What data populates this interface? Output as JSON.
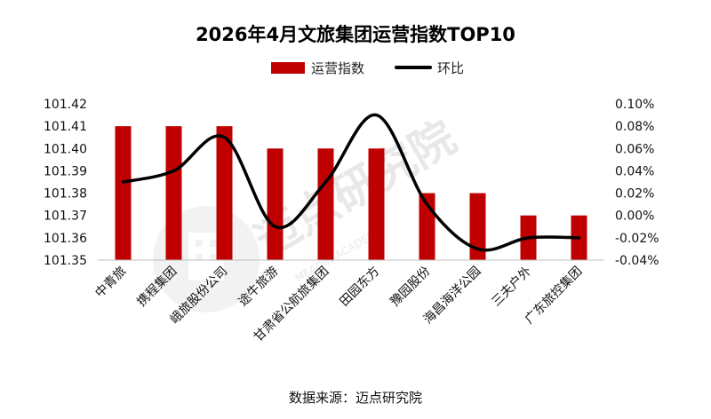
{
  "chart_data": {
    "type": "bar",
    "title": "2026年4月文旅集团运营指数TOP10",
    "categories": [
      "中青旅",
      "携程集团",
      "峨旅股份公司",
      "途牛旅游",
      "甘肃省公航旅集团",
      "田园东方",
      "豫园股份",
      "海昌海洋公园",
      "三夫户外",
      "广东旅控集团"
    ],
    "series": [
      {
        "name": "运营指数",
        "type": "bar",
        "axis": "left",
        "color": "#c00000",
        "values": [
          101.41,
          101.41,
          101.41,
          101.4,
          101.4,
          101.4,
          101.38,
          101.38,
          101.37,
          101.37
        ]
      },
      {
        "name": "环比",
        "type": "line",
        "axis": "right",
        "color": "#000000",
        "values": [
          0.03,
          0.04,
          0.07,
          -0.01,
          0.03,
          0.09,
          0.01,
          -0.03,
          -0.02,
          -0.02
        ]
      }
    ],
    "y_left": {
      "min": 101.35,
      "max": 101.42,
      "step": 0.01,
      "ticks": [
        "101.35",
        "101.36",
        "101.37",
        "101.38",
        "101.39",
        "101.40",
        "101.41",
        "101.42"
      ]
    },
    "y_right": {
      "min": -0.04,
      "max": 0.1,
      "step": 0.02,
      "ticks": [
        "-0.04%",
        "-0.02%",
        "0.00%",
        "0.02%",
        "0.04%",
        "0.06%",
        "0.08%",
        "0.10%"
      ]
    },
    "legend": {
      "placement": "top",
      "items": [
        "运营指数",
        "环比"
      ]
    },
    "grid": false
  },
  "source_note": "数据来源：迈点研究院",
  "watermark": {
    "text": "迈点研究院",
    "subtext": "MEADIN  ACADEMY",
    "icon": "building-logo-icon"
  }
}
